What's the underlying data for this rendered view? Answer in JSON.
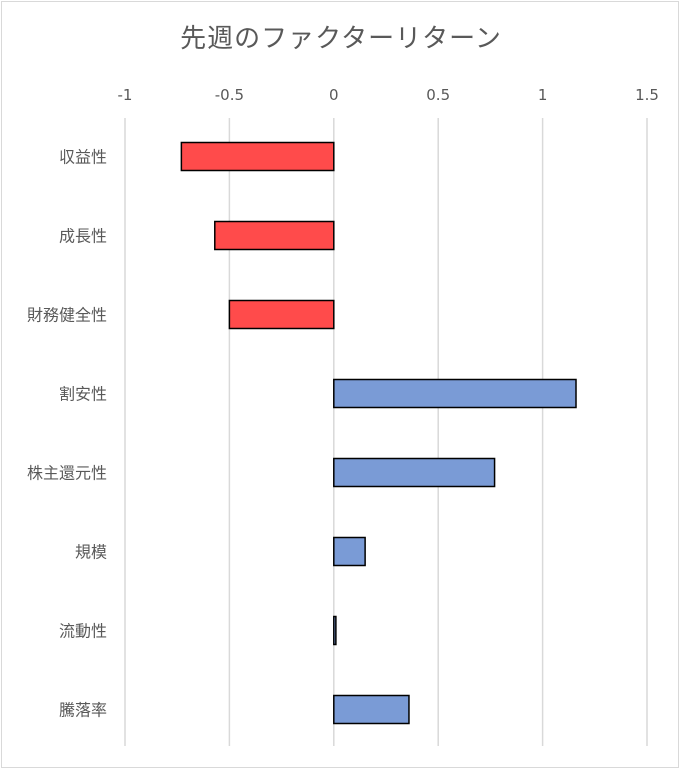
{
  "chart_data": {
    "type": "bar",
    "orientation": "horizontal",
    "title": "先週のファクターリターン",
    "xlabel": "",
    "ylabel": "",
    "xlim": [
      -1,
      1.5
    ],
    "x_ticks": [
      -1,
      -0.5,
      0,
      0.5,
      1,
      1.5
    ],
    "x_tick_labels": [
      "-1",
      "-0.5",
      "0",
      "0.5",
      "1",
      "1.5"
    ],
    "x_axis_position": "top",
    "grid": true,
    "legend": "none",
    "categories": [
      "収益性",
      "成長性",
      "財務健全性",
      "割安性",
      "株主還元性",
      "規模",
      "流動性",
      "騰落率"
    ],
    "values": [
      -0.73,
      -0.57,
      -0.5,
      1.16,
      0.77,
      0.15,
      0.01,
      0.36
    ],
    "colors": {
      "negative": "#ff4b4b",
      "positive": "#7a9bd6",
      "outline": "#000000",
      "grid": "#d9d9d9",
      "text": "#595959"
    }
  }
}
